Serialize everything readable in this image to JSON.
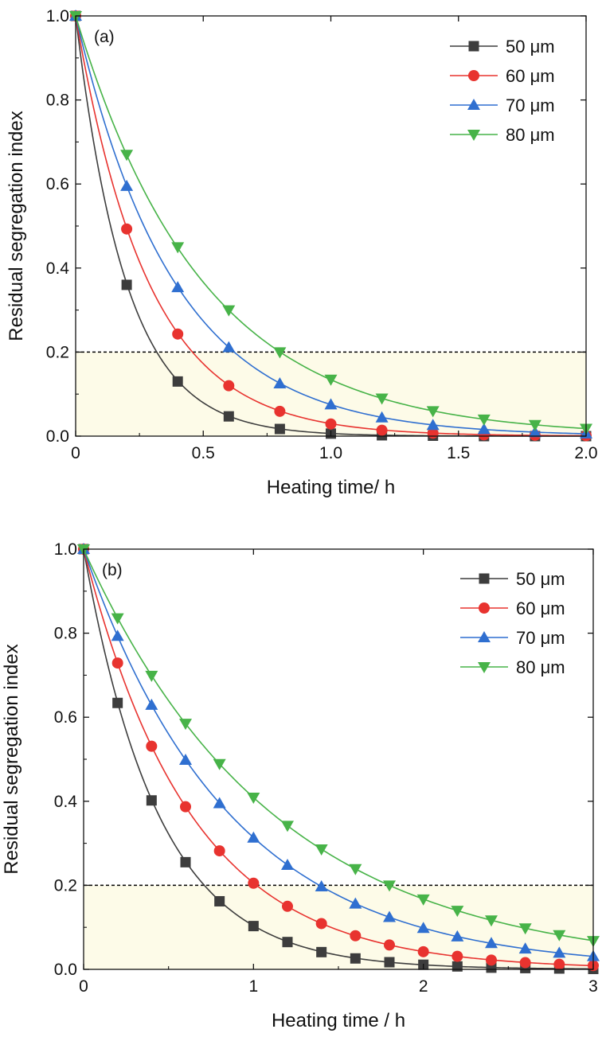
{
  "colors": {
    "s50": "#3d3d3d",
    "s60": "#e8332f",
    "s70": "#2f6fd0",
    "s80": "#47b348",
    "shade": "#fdfbe8",
    "threshold": "#000000"
  },
  "chart_data": [
    {
      "type": "line",
      "panel_label": "(a)",
      "xlabel": "Heating time/ h",
      "ylabel": "Residual segregation index",
      "xlim": [
        0,
        2.0
      ],
      "ylim": [
        0,
        1.0
      ],
      "xticks": [
        0,
        0.5,
        1.0,
        1.5,
        2.0
      ],
      "xtick_labels": [
        "0",
        "0.5",
        "1.0",
        "1.5",
        "2.0"
      ],
      "yticks": [
        0,
        0.2,
        0.4,
        0.6,
        0.8,
        1.0
      ],
      "ytick_labels": [
        "0.0",
        "0.2",
        "0.4",
        "0.6",
        "0.8",
        "1.0"
      ],
      "threshold": 0.2,
      "legend_position": "top-right",
      "series": [
        {
          "name": "50 μm",
          "marker": "square",
          "color": "#3d3d3d",
          "x": [
            0,
            0.2,
            0.4,
            0.6,
            0.8,
            1.0,
            1.2,
            1.4,
            1.6,
            1.8,
            2.0
          ],
          "y": [
            1.0,
            0.36,
            0.13,
            0.047,
            0.017,
            0.006,
            0.002,
            0.001,
            0.0,
            0.0,
            0.0
          ]
        },
        {
          "name": "60 μm",
          "marker": "circle",
          "color": "#e8332f",
          "x": [
            0,
            0.2,
            0.4,
            0.6,
            0.8,
            1.0,
            1.2,
            1.4,
            1.6,
            1.8,
            2.0
          ],
          "y": [
            1.0,
            0.493,
            0.243,
            0.12,
            0.059,
            0.029,
            0.014,
            0.007,
            0.003,
            0.002,
            0.001
          ]
        },
        {
          "name": "70 μm",
          "marker": "triangle-up",
          "color": "#2f6fd0",
          "x": [
            0,
            0.2,
            0.4,
            0.6,
            0.8,
            1.0,
            1.2,
            1.4,
            1.6,
            1.8,
            2.0
          ],
          "y": [
            1.0,
            0.595,
            0.354,
            0.211,
            0.125,
            0.075,
            0.044,
            0.026,
            0.016,
            0.009,
            0.006
          ]
        },
        {
          "name": "80 μm",
          "marker": "triangle-down",
          "color": "#47b348",
          "x": [
            0,
            0.2,
            0.4,
            0.6,
            0.8,
            1.0,
            1.2,
            1.4,
            1.6,
            1.8,
            2.0
          ],
          "y": [
            1.0,
            0.67,
            0.45,
            0.3,
            0.2,
            0.135,
            0.09,
            0.06,
            0.04,
            0.027,
            0.018
          ]
        }
      ]
    },
    {
      "type": "line",
      "panel_label": "(b)",
      "xlabel": "Heating time / h",
      "ylabel": "Residual segregation index",
      "xlim": [
        0,
        3
      ],
      "ylim": [
        0,
        1.0
      ],
      "xticks": [
        0,
        1,
        2,
        3
      ],
      "xtick_labels": [
        "0",
        "1",
        "2",
        "3"
      ],
      "yticks": [
        0,
        0.2,
        0.4,
        0.6,
        0.8,
        1.0
      ],
      "ytick_labels": [
        "0.0",
        "0.2",
        "0.4",
        "0.6",
        "0.8",
        "1.0"
      ],
      "threshold": 0.2,
      "legend_position": "top-right",
      "series": [
        {
          "name": "50 μm",
          "marker": "square",
          "color": "#3d3d3d",
          "x": [
            0,
            0.2,
            0.4,
            0.6,
            0.8,
            1.0,
            1.2,
            1.4,
            1.6,
            1.8,
            2.0,
            2.2,
            2.4,
            2.6,
            2.8,
            3.0
          ],
          "y": [
            1.0,
            0.634,
            0.402,
            0.255,
            0.162,
            0.103,
            0.065,
            0.041,
            0.026,
            0.017,
            0.011,
            0.007,
            0.004,
            0.003,
            0.002,
            0.001
          ]
        },
        {
          "name": "60 μm",
          "marker": "circle",
          "color": "#e8332f",
          "x": [
            0,
            0.2,
            0.4,
            0.6,
            0.8,
            1.0,
            1.2,
            1.4,
            1.6,
            1.8,
            2.0,
            2.2,
            2.4,
            2.6,
            2.8,
            3.0
          ],
          "y": [
            1.0,
            0.729,
            0.531,
            0.387,
            0.282,
            0.205,
            0.15,
            0.109,
            0.08,
            0.058,
            0.042,
            0.031,
            0.022,
            0.016,
            0.012,
            0.009
          ]
        },
        {
          "name": "70 μm",
          "marker": "triangle-up",
          "color": "#2f6fd0",
          "x": [
            0,
            0.2,
            0.4,
            0.6,
            0.8,
            1.0,
            1.2,
            1.4,
            1.6,
            1.8,
            2.0,
            2.2,
            2.4,
            2.6,
            2.8,
            3.0
          ],
          "y": [
            1.0,
            0.793,
            0.629,
            0.498,
            0.395,
            0.313,
            0.248,
            0.197,
            0.156,
            0.124,
            0.098,
            0.078,
            0.062,
            0.049,
            0.039,
            0.031
          ]
        },
        {
          "name": "80 μm",
          "marker": "triangle-down",
          "color": "#47b348",
          "x": [
            0,
            0.2,
            0.4,
            0.6,
            0.8,
            1.0,
            1.2,
            1.4,
            1.6,
            1.8,
            2.0,
            2.2,
            2.4,
            2.6,
            2.8,
            3.0
          ],
          "y": [
            1.0,
            0.836,
            0.699,
            0.585,
            0.489,
            0.409,
            0.342,
            0.286,
            0.239,
            0.2,
            0.167,
            0.14,
            0.117,
            0.098,
            0.082,
            0.068
          ]
        }
      ]
    }
  ]
}
